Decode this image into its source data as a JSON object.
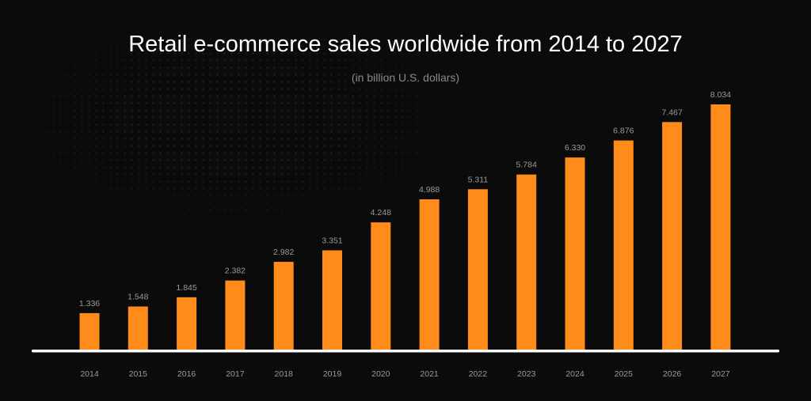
{
  "chart_data": {
    "type": "bar",
    "title": "Retail e-commerce sales worldwide from 2014 to 2027",
    "subtitle": "(in billion U.S. dollars)",
    "xlabel": "",
    "ylabel": "",
    "categories": [
      "2014",
      "2015",
      "2016",
      "2017",
      "2018",
      "2019",
      "2020",
      "2021",
      "2022",
      "2023",
      "2024",
      "2025",
      "2026",
      "2027"
    ],
    "values": [
      1.336,
      1.548,
      1.845,
      2.382,
      2.982,
      3.351,
      4.248,
      4.988,
      5.311,
      5.784,
      6.33,
      6.876,
      7.467,
      8.034
    ],
    "data_labels": [
      "1.336",
      "1.548",
      "1.845",
      "2.382",
      "2.982",
      "3.351",
      "4.248",
      "4.988",
      "5.311",
      "5.784",
      "6.330",
      "6.876",
      "7.467",
      "8.034"
    ],
    "grid": false,
    "legend": "none",
    "colors": {
      "bar": "#ff8c1a",
      "axis": "#ffffff",
      "label": "#9a9a9a",
      "background": "#0b0b0b"
    }
  }
}
